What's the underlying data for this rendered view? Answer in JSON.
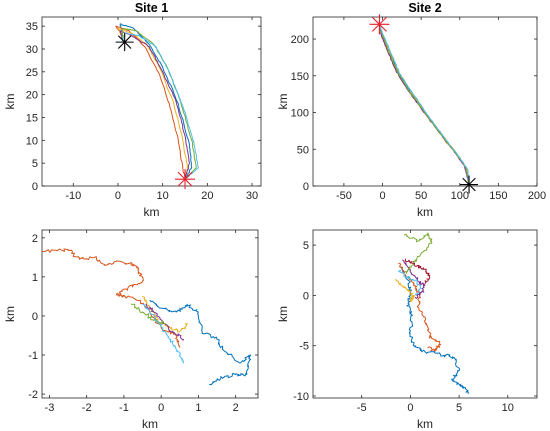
{
  "colors": {
    "series": [
      "#0072BD",
      "#D95319",
      "#EDB120",
      "#7E2F8E",
      "#77AC30",
      "#4DBEEE",
      "#A2142F"
    ],
    "start_marker": "#000000",
    "end_marker": "#E8202A",
    "axes": "#262626"
  },
  "chart_data": [
    {
      "id": "site1",
      "type": "line",
      "title": "Site 1",
      "xlabel": "km",
      "ylabel": "km",
      "xlim": [
        -17,
        32
      ],
      "ylim": [
        0,
        37
      ],
      "xticks": [
        -10,
        0,
        10,
        20,
        30
      ],
      "yticks": [
        0,
        5,
        10,
        15,
        20,
        25,
        30,
        35
      ],
      "series": [
        {
          "values": [
            [
              1,
              33.5
            ],
            [
              0.5,
              35.5
            ],
            [
              3.5,
              34.5
            ],
            [
              7,
              31
            ],
            [
              10,
              26
            ],
            [
              13.5,
              18
            ],
            [
              16,
              9
            ],
            [
              16.5,
              4
            ],
            [
              15,
              1.5
            ]
          ]
        },
        {
          "values": [
            [
              1,
              33
            ],
            [
              -0.5,
              35
            ],
            [
              2.5,
              34
            ],
            [
              6,
              30.5
            ],
            [
              9,
              25
            ],
            [
              11.5,
              18
            ],
            [
              13.5,
              10
            ],
            [
              14.5,
              4
            ],
            [
              15,
              1.5
            ]
          ]
        },
        {
          "values": [
            [
              1,
              32.5
            ],
            [
              0,
              34.5
            ],
            [
              3,
              33.5
            ],
            [
              6.5,
              31
            ],
            [
              9.5,
              25.5
            ],
            [
              12.5,
              18
            ],
            [
              14.5,
              10
            ],
            [
              15.5,
              4
            ],
            [
              15,
              1.5
            ]
          ]
        },
        {
          "values": [
            [
              1,
              32
            ],
            [
              0.5,
              34
            ],
            [
              3,
              33
            ],
            [
              7,
              30.5
            ],
            [
              10,
              25
            ],
            [
              13,
              18.5
            ],
            [
              15,
              11
            ],
            [
              16,
              5
            ],
            [
              15,
              1.5
            ]
          ]
        },
        {
          "values": [
            [
              1,
              32
            ],
            [
              1,
              34.5
            ],
            [
              4,
              34
            ],
            [
              8,
              31
            ],
            [
              11,
              26
            ],
            [
              14,
              18.5
            ],
            [
              16.5,
              10
            ],
            [
              17.5,
              4
            ],
            [
              15,
              1.5
            ]
          ]
        },
        {
          "values": [
            [
              1,
              31.5
            ],
            [
              1.5,
              33.5
            ],
            [
              4.5,
              33
            ],
            [
              8.5,
              30.5
            ],
            [
              11.5,
              25
            ],
            [
              14.5,
              17.5
            ],
            [
              17,
              9.5
            ],
            [
              18,
              4
            ],
            [
              15,
              1.5
            ]
          ]
        }
      ],
      "start": [
        1.5,
        31.5
      ],
      "end": [
        15,
        1.5
      ]
    },
    {
      "id": "site2",
      "type": "line",
      "title": "Site 2",
      "xlabel": "km",
      "ylabel": "km",
      "xlim": [
        -90,
        200
      ],
      "ylim": [
        0,
        230
      ],
      "xticks": [
        -50,
        0,
        50,
        100,
        150,
        200
      ],
      "yticks": [
        0,
        50,
        100,
        150,
        200
      ],
      "series": [
        {
          "values": [
            [
              112,
              3
            ],
            [
              108,
              25
            ],
            [
              95,
              45
            ],
            [
              75,
              72
            ],
            [
              55,
              100
            ],
            [
              38,
              125
            ],
            [
              20,
              155
            ],
            [
              8,
              185
            ],
            [
              0,
              205
            ],
            [
              -4,
              220
            ]
          ]
        },
        {
          "values": [
            [
              112,
              3
            ],
            [
              107,
              26
            ],
            [
              93,
              47
            ],
            [
              73,
              73
            ],
            [
              52,
              103
            ],
            [
              35,
              128
            ],
            [
              18,
              157
            ],
            [
              6,
              186
            ],
            [
              -1,
              206
            ],
            [
              -4,
              220
            ]
          ]
        },
        {
          "values": [
            [
              112,
              3
            ],
            [
              109,
              24
            ],
            [
              96,
              44
            ],
            [
              77,
              70
            ],
            [
              57,
              98
            ],
            [
              40,
              124
            ],
            [
              22,
              153
            ],
            [
              9,
              184
            ],
            [
              1,
              204
            ],
            [
              -4,
              220
            ]
          ]
        },
        {
          "values": [
            [
              112,
              3
            ],
            [
              106,
              27
            ],
            [
              92,
              48
            ],
            [
              72,
              75
            ],
            [
              51,
              104
            ],
            [
              33,
              130
            ],
            [
              17,
              158
            ],
            [
              5,
              187
            ],
            [
              -2,
              207
            ],
            [
              -4,
              220
            ]
          ]
        },
        {
          "values": [
            [
              112,
              3
            ],
            [
              108,
              25
            ],
            [
              94,
              46
            ],
            [
              74,
              72
            ],
            [
              54,
              101
            ],
            [
              36,
              127
            ],
            [
              19,
              156
            ],
            [
              7,
              185
            ],
            [
              0,
              205
            ],
            [
              -4,
              220
            ]
          ]
        },
        {
          "values": [
            [
              112,
              3
            ],
            [
              110,
              23
            ],
            [
              97,
              43
            ],
            [
              78,
              69
            ],
            [
              58,
              97
            ],
            [
              41,
              123
            ],
            [
              23,
              152
            ],
            [
              10,
              183
            ],
            [
              2,
              203
            ],
            [
              -4,
              220
            ]
          ]
        }
      ],
      "start": [
        112,
        2
      ],
      "end": [
        -4,
        220
      ]
    },
    {
      "id": "site1-detail",
      "type": "line",
      "title": "",
      "xlabel": "km",
      "ylabel": "km",
      "xlim": [
        -3.2,
        2.6
      ],
      "ylim": [
        -2.1,
        2.2
      ],
      "xticks": [
        -3,
        -2,
        -1,
        0,
        1,
        2
      ],
      "yticks": [
        -2,
        -1,
        0,
        1,
        2
      ],
      "series": [
        {
          "values": [
            [
              -0.3,
              0.4
            ],
            [
              0,
              0.2
            ],
            [
              0.4,
              0.1
            ],
            [
              0.7,
              0.3
            ],
            [
              1,
              0.1
            ],
            [
              1.1,
              -0.4
            ],
            [
              1.5,
              -0.6
            ],
            [
              1.7,
              -0.9
            ],
            [
              2.1,
              -1.2
            ],
            [
              2.4,
              -1.0
            ],
            [
              2.3,
              -1.5
            ],
            [
              2.0,
              -1.5
            ],
            [
              1.6,
              -1.6
            ],
            [
              1.3,
              -1.75
            ]
          ]
        },
        {
          "values": [
            [
              -3.2,
              1.65
            ],
            [
              -2.5,
              1.7
            ],
            [
              -2.2,
              1.45
            ],
            [
              -1.8,
              1.5
            ],
            [
              -1.5,
              1.3
            ],
            [
              -1.2,
              1.4
            ],
            [
              -0.8,
              1.35
            ],
            [
              -0.6,
              1.2
            ],
            [
              -0.5,
              0.9
            ],
            [
              -0.9,
              0.7
            ],
            [
              -1.2,
              0.55
            ],
            [
              -1.0,
              0.5
            ],
            [
              -0.6,
              0.4
            ],
            [
              -0.3,
              0.1
            ],
            [
              0,
              -0.3
            ],
            [
              0.4,
              -0.5
            ],
            [
              0.5,
              -0.8
            ]
          ]
        },
        {
          "values": [
            [
              -0.5,
              0.5
            ],
            [
              -0.3,
              0.2
            ],
            [
              -0.1,
              -0.1
            ],
            [
              0.2,
              -0.3
            ],
            [
              0.5,
              -0.4
            ],
            [
              0.7,
              -0.2
            ]
          ]
        },
        {
          "values": [
            [
              -0.4,
              0.3
            ],
            [
              -0.2,
              0.1
            ],
            [
              0.1,
              -0.2
            ],
            [
              0.3,
              -0.4
            ],
            [
              0.6,
              -0.6
            ]
          ]
        },
        {
          "values": [
            [
              -0.8,
              0.3
            ],
            [
              -0.5,
              0.1
            ],
            [
              -0.2,
              -0.1
            ],
            [
              0.1,
              -0.2
            ]
          ]
        },
        {
          "values": [
            [
              -0.5,
              0.3
            ],
            [
              -0.2,
              0.0
            ],
            [
              0.1,
              -0.4
            ],
            [
              0.3,
              -0.7
            ],
            [
              0.5,
              -1.0
            ],
            [
              0.6,
              -1.2
            ]
          ]
        }
      ]
    },
    {
      "id": "site2-detail",
      "type": "line",
      "title": "",
      "xlabel": "km",
      "ylabel": "km",
      "xlim": [
        -10,
        13
      ],
      "ylim": [
        -10.2,
        6.5
      ],
      "xticks": [
        -5,
        0,
        5,
        10
      ],
      "yticks": [
        -10,
        -5,
        0,
        5
      ],
      "series": [
        {
          "values": [
            [
              -1.0,
              2.8
            ],
            [
              -0.2,
              1.5
            ],
            [
              0.0,
              0.0
            ],
            [
              -0.3,
              -1.0
            ],
            [
              0.2,
              -2.0
            ],
            [
              0.0,
              -3.5
            ],
            [
              0.3,
              -5.0
            ],
            [
              1.5,
              -5.6
            ],
            [
              3.0,
              -5.8
            ],
            [
              4.5,
              -6.2
            ],
            [
              5.0,
              -7.5
            ],
            [
              4.3,
              -8.5
            ],
            [
              5.5,
              -9.2
            ],
            [
              6.0,
              -9.7
            ]
          ]
        },
        {
          "values": [
            [
              -1.2,
              3.2
            ],
            [
              -0.5,
              2.0
            ],
            [
              0.4,
              1.0
            ],
            [
              0.9,
              0.3
            ],
            [
              0.8,
              -1.0
            ],
            [
              1.5,
              -2.5
            ],
            [
              2.0,
              -4.0
            ],
            [
              3.0,
              -4.8
            ],
            [
              2.5,
              -5.5
            ],
            [
              1.8,
              -5.2
            ]
          ]
        },
        {
          "values": [
            [
              -1.5,
              1.6
            ],
            [
              -0.7,
              0.8
            ],
            [
              0.0,
              0.4
            ],
            [
              0.3,
              -0.2
            ],
            [
              0.0,
              -0.6
            ]
          ]
        },
        {
          "values": [
            [
              -0.8,
              3.5
            ],
            [
              0.0,
              2.5
            ],
            [
              0.8,
              1.4
            ],
            [
              1.5,
              1.0
            ],
            [
              1.2,
              0.4
            ],
            [
              0.5,
              -0.2
            ]
          ]
        },
        {
          "values": [
            [
              -0.6,
              6.0
            ],
            [
              0.8,
              5.4
            ],
            [
              1.8,
              6.2
            ],
            [
              2.2,
              5.2
            ],
            [
              1.0,
              4.0
            ],
            [
              0.2,
              3.0
            ],
            [
              -0.4,
              2.2
            ]
          ]
        },
        {
          "values": [
            [
              -1.2,
              2.4
            ],
            [
              -0.4,
              1.8
            ],
            [
              0.5,
              1.5
            ],
            [
              1.0,
              0.8
            ],
            [
              0.6,
              0.0
            ]
          ]
        },
        {
          "values": [
            [
              -0.5,
              3.6
            ],
            [
              0.4,
              3.0
            ],
            [
              1.3,
              2.7
            ],
            [
              2.0,
              2.0
            ],
            [
              1.5,
              1.2
            ]
          ]
        }
      ]
    }
  ]
}
